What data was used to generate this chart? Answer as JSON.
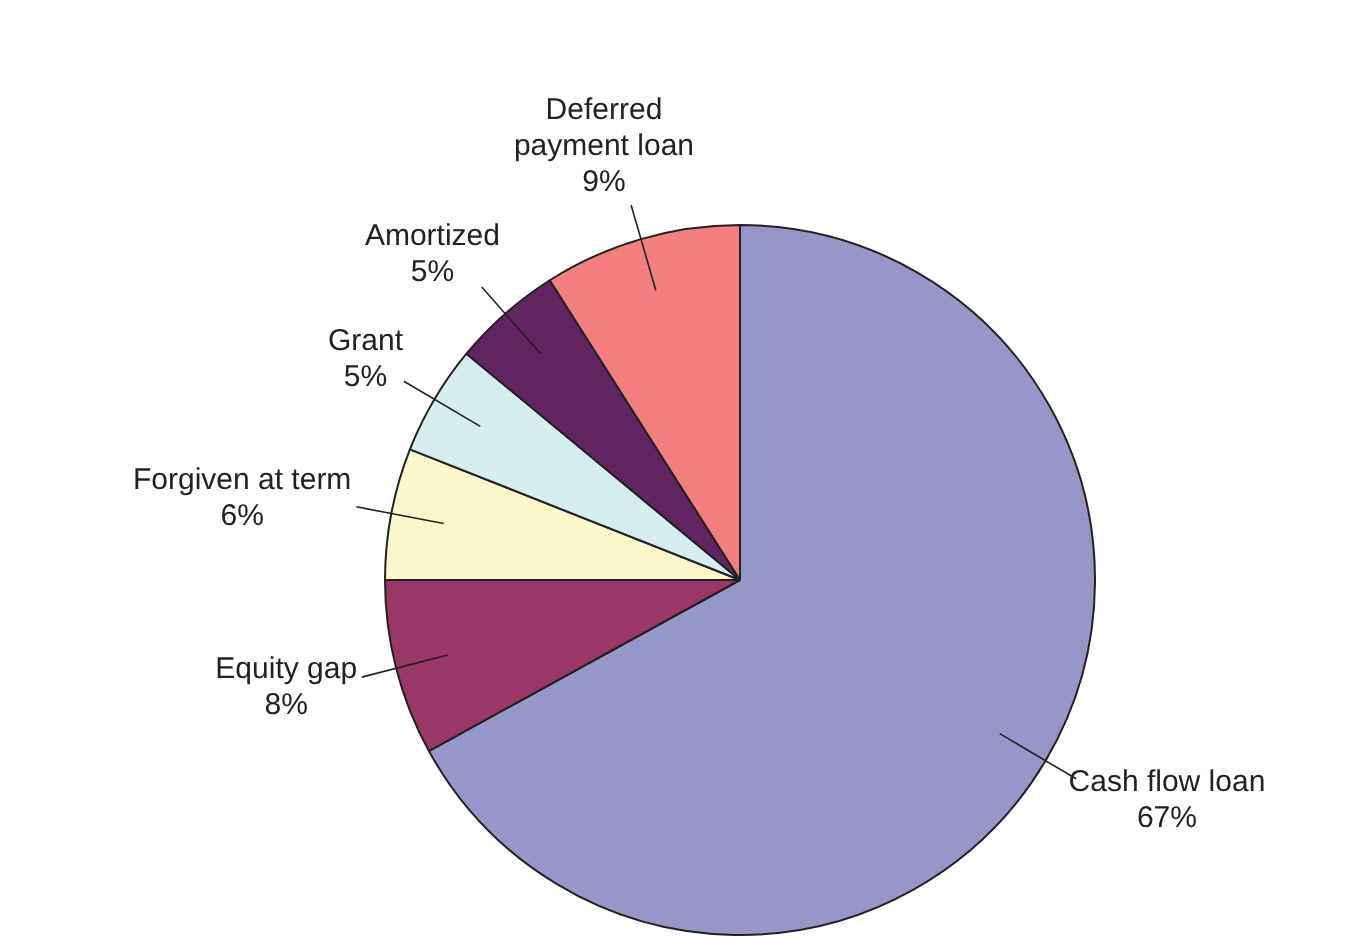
{
  "chart_data": {
    "type": "pie",
    "categories": [
      "Cash flow loan",
      "Equity gap",
      "Forgiven at term",
      "Grant",
      "Amortized",
      "Deferred payment loan"
    ],
    "values": [
      67,
      8,
      6,
      5,
      5,
      9
    ],
    "value_labels": [
      "67%",
      "8%",
      "6%",
      "5%",
      "5%",
      "9%"
    ],
    "colors": [
      "#9696c8",
      "#9b3766",
      "#fdf8cc",
      "#d6edf2",
      "#632463",
      "#f47f80"
    ],
    "legend": false
  }
}
